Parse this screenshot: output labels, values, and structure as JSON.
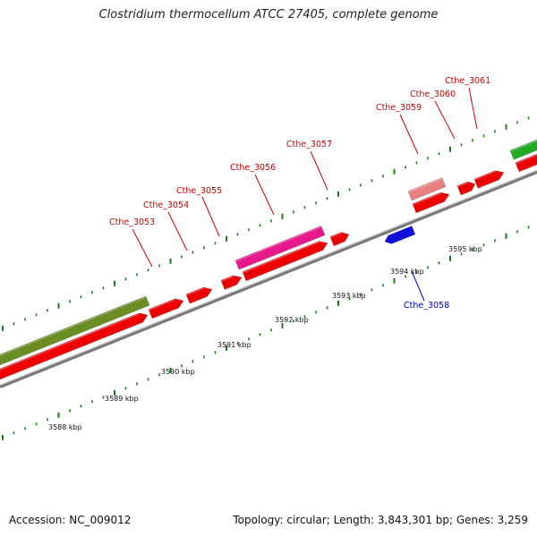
{
  "title": "Clostridium thermocellum ATCC 27405, complete genome",
  "footer": {
    "accession": "Accession: NC_009012",
    "summary": "Topology: circular; Length: 3,843,301 bp; Genes: 3,259"
  },
  "colors": {
    "gene_red": "#ee0000",
    "gene_pink": "#e8198b",
    "gene_olive": "#6b8e23",
    "gene_green": "#22aa22",
    "gene_light_red": "#e88080",
    "gene_blue": "#1010dd",
    "tick_green": "#1a7a1a",
    "label_red": "#cc0000",
    "label_blue": "#0000cc",
    "backbone": "#888888"
  },
  "scale_labels": [
    "3588 kbp",
    "3589 kbp",
    "3590 kbp",
    "3591 kbp",
    "3592 kbp",
    "3593 kbp",
    "3594 kbp",
    "3595 kbp"
  ],
  "genes": [
    {
      "name": "Cthe_3053",
      "strand": "+"
    },
    {
      "name": "Cthe_3054",
      "strand": "+"
    },
    {
      "name": "Cthe_3055",
      "strand": "+"
    },
    {
      "name": "Cthe_3056",
      "strand": "+"
    },
    {
      "name": "Cthe_3057",
      "strand": "+"
    },
    {
      "name": "Cthe_3058",
      "strand": "-"
    },
    {
      "name": "Cthe_3059",
      "strand": "+"
    },
    {
      "name": "Cthe_3060",
      "strand": "+"
    },
    {
      "name": "Cthe_3061",
      "strand": "+"
    }
  ]
}
